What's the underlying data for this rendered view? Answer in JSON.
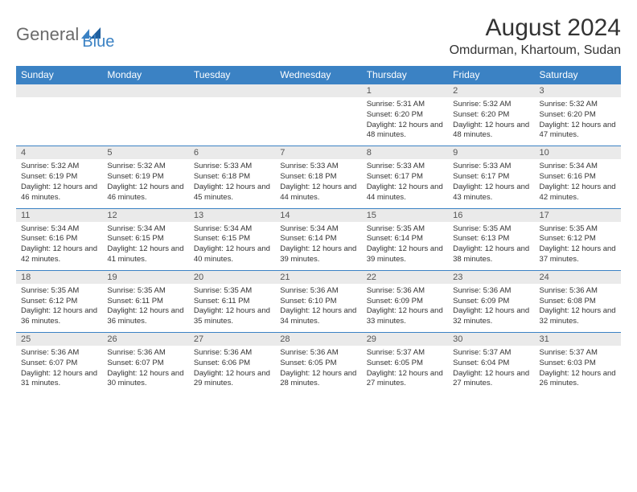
{
  "logo": {
    "word1": "General",
    "word2": "Blue"
  },
  "title": "August 2024",
  "subtitle": "Omdurman, Khartoum, Sudan",
  "colors": {
    "accent": "#3b82c4",
    "header_text": "#ffffff",
    "daynum_bg": "#eaeaea"
  },
  "dayHeaders": [
    "Sunday",
    "Monday",
    "Tuesday",
    "Wednesday",
    "Thursday",
    "Friday",
    "Saturday"
  ],
  "weeks": [
    [
      null,
      null,
      null,
      null,
      {
        "n": "1",
        "sr": "5:31 AM",
        "ss": "6:20 PM",
        "dl": "12 hours and 48 minutes."
      },
      {
        "n": "2",
        "sr": "5:32 AM",
        "ss": "6:20 PM",
        "dl": "12 hours and 48 minutes."
      },
      {
        "n": "3",
        "sr": "5:32 AM",
        "ss": "6:20 PM",
        "dl": "12 hours and 47 minutes."
      }
    ],
    [
      {
        "n": "4",
        "sr": "5:32 AM",
        "ss": "6:19 PM",
        "dl": "12 hours and 46 minutes."
      },
      {
        "n": "5",
        "sr": "5:32 AM",
        "ss": "6:19 PM",
        "dl": "12 hours and 46 minutes."
      },
      {
        "n": "6",
        "sr": "5:33 AM",
        "ss": "6:18 PM",
        "dl": "12 hours and 45 minutes."
      },
      {
        "n": "7",
        "sr": "5:33 AM",
        "ss": "6:18 PM",
        "dl": "12 hours and 44 minutes."
      },
      {
        "n": "8",
        "sr": "5:33 AM",
        "ss": "6:17 PM",
        "dl": "12 hours and 44 minutes."
      },
      {
        "n": "9",
        "sr": "5:33 AM",
        "ss": "6:17 PM",
        "dl": "12 hours and 43 minutes."
      },
      {
        "n": "10",
        "sr": "5:34 AM",
        "ss": "6:16 PM",
        "dl": "12 hours and 42 minutes."
      }
    ],
    [
      {
        "n": "11",
        "sr": "5:34 AM",
        "ss": "6:16 PM",
        "dl": "12 hours and 42 minutes."
      },
      {
        "n": "12",
        "sr": "5:34 AM",
        "ss": "6:15 PM",
        "dl": "12 hours and 41 minutes."
      },
      {
        "n": "13",
        "sr": "5:34 AM",
        "ss": "6:15 PM",
        "dl": "12 hours and 40 minutes."
      },
      {
        "n": "14",
        "sr": "5:34 AM",
        "ss": "6:14 PM",
        "dl": "12 hours and 39 minutes."
      },
      {
        "n": "15",
        "sr": "5:35 AM",
        "ss": "6:14 PM",
        "dl": "12 hours and 39 minutes."
      },
      {
        "n": "16",
        "sr": "5:35 AM",
        "ss": "6:13 PM",
        "dl": "12 hours and 38 minutes."
      },
      {
        "n": "17",
        "sr": "5:35 AM",
        "ss": "6:12 PM",
        "dl": "12 hours and 37 minutes."
      }
    ],
    [
      {
        "n": "18",
        "sr": "5:35 AM",
        "ss": "6:12 PM",
        "dl": "12 hours and 36 minutes."
      },
      {
        "n": "19",
        "sr": "5:35 AM",
        "ss": "6:11 PM",
        "dl": "12 hours and 36 minutes."
      },
      {
        "n": "20",
        "sr": "5:35 AM",
        "ss": "6:11 PM",
        "dl": "12 hours and 35 minutes."
      },
      {
        "n": "21",
        "sr": "5:36 AM",
        "ss": "6:10 PM",
        "dl": "12 hours and 34 minutes."
      },
      {
        "n": "22",
        "sr": "5:36 AM",
        "ss": "6:09 PM",
        "dl": "12 hours and 33 minutes."
      },
      {
        "n": "23",
        "sr": "5:36 AM",
        "ss": "6:09 PM",
        "dl": "12 hours and 32 minutes."
      },
      {
        "n": "24",
        "sr": "5:36 AM",
        "ss": "6:08 PM",
        "dl": "12 hours and 32 minutes."
      }
    ],
    [
      {
        "n": "25",
        "sr": "5:36 AM",
        "ss": "6:07 PM",
        "dl": "12 hours and 31 minutes."
      },
      {
        "n": "26",
        "sr": "5:36 AM",
        "ss": "6:07 PM",
        "dl": "12 hours and 30 minutes."
      },
      {
        "n": "27",
        "sr": "5:36 AM",
        "ss": "6:06 PM",
        "dl": "12 hours and 29 minutes."
      },
      {
        "n": "28",
        "sr": "5:36 AM",
        "ss": "6:05 PM",
        "dl": "12 hours and 28 minutes."
      },
      {
        "n": "29",
        "sr": "5:37 AM",
        "ss": "6:05 PM",
        "dl": "12 hours and 27 minutes."
      },
      {
        "n": "30",
        "sr": "5:37 AM",
        "ss": "6:04 PM",
        "dl": "12 hours and 27 minutes."
      },
      {
        "n": "31",
        "sr": "5:37 AM",
        "ss": "6:03 PM",
        "dl": "12 hours and 26 minutes."
      }
    ]
  ]
}
